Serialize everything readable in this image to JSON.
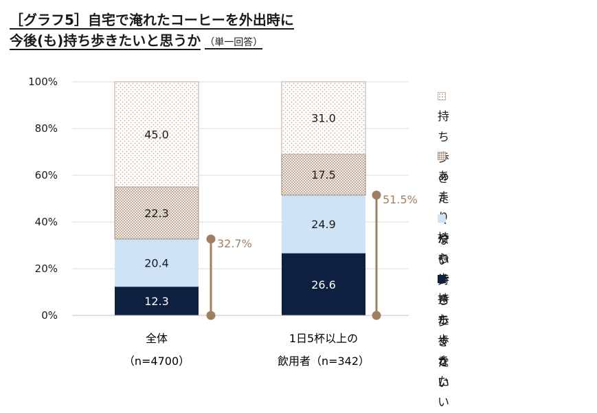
{
  "title": {
    "line1": "［グラフ5］自宅で淹れたコーヒーを外出時に",
    "line2": "今後(も)持ち歩きたいと思うか",
    "note": "（単一回答）"
  },
  "chart_data": {
    "type": "bar",
    "stacked": true,
    "categories": [
      {
        "line1": "全体",
        "line2": "（n=4700）"
      },
      {
        "line1": "1日5杯以上の",
        "line2": "飲用者（n=342）"
      }
    ],
    "y_ticks": [
      "0%",
      "20%",
      "40%",
      "60%",
      "80%",
      "100%"
    ],
    "ylim": [
      0,
      100
    ],
    "series": [
      {
        "name": "持ち歩きたい",
        "values": [
          12.3,
          26.6
        ],
        "labels": [
          "12.3",
          "26.6"
        ],
        "color": "#0d2040",
        "text_color": "#ffffff",
        "pattern": "solid"
      },
      {
        "name": "やや持ち歩きたい",
        "values": [
          20.4,
          24.9
        ],
        "labels": [
          "20.4",
          "24.9"
        ],
        "color": "#cfe3f7",
        "text_color": "#1a1a1a",
        "pattern": "solid"
      },
      {
        "name": "あまり持ち歩きたくない",
        "values": [
          22.3,
          17.5
        ],
        "labels": [
          "22.3",
          "17.5"
        ],
        "color": "#b09a86",
        "text_color": "#1a1a1a",
        "pattern": "dense-dots"
      },
      {
        "name": "持ち歩きたくない",
        "values": [
          45.0,
          31.0
        ],
        "labels": [
          "45.0",
          "31.0"
        ],
        "color": "#c8b6a6",
        "text_color": "#1a1a1a",
        "pattern": "sparse-dots"
      }
    ],
    "brackets": [
      {
        "value": 32.7,
        "label": "32.7%"
      },
      {
        "value": 51.5,
        "label": "51.5%"
      }
    ],
    "bracket_color": "#a07e60",
    "legend": {
      "position": "right",
      "items": [
        {
          "line1": "持ち歩きたくない",
          "line2": ""
        },
        {
          "line1": "あまり持ち歩きたく",
          "line2": "ない"
        },
        {
          "line1": "やや持ち歩きたい",
          "line2": ""
        },
        {
          "line1": "持ち歩きたい",
          "line2": ""
        }
      ]
    },
    "grid": true
  }
}
